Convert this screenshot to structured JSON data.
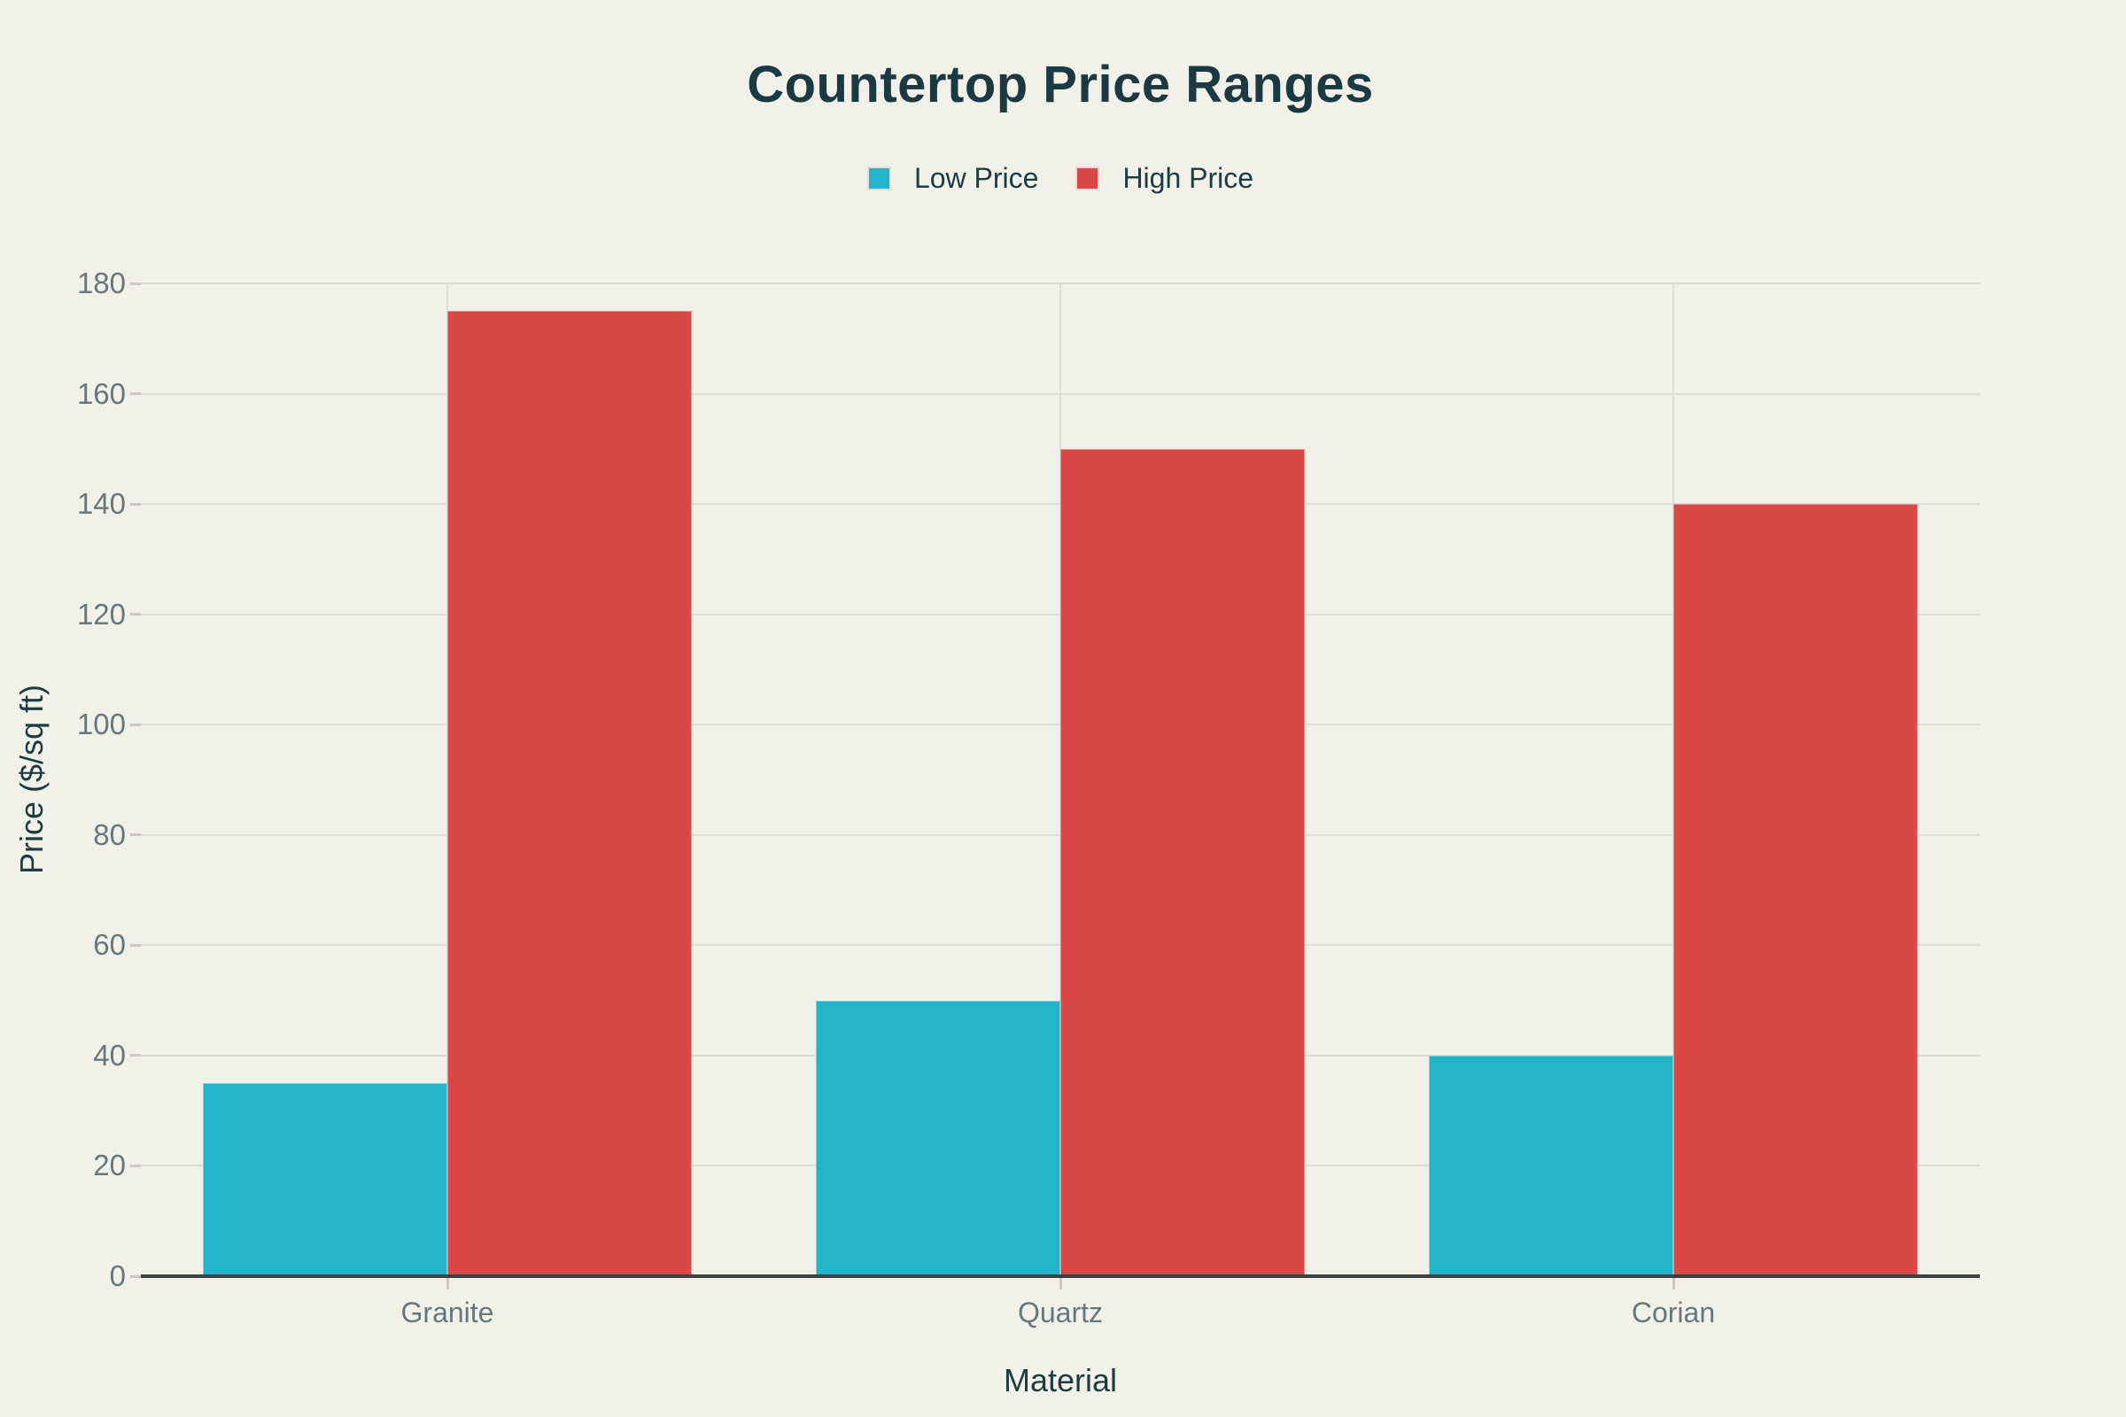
{
  "chart_data": {
    "type": "bar",
    "title": "Countertop Price Ranges",
    "xlabel": "Material",
    "ylabel": "Price ($/sq ft)",
    "categories": [
      "Granite",
      "Quartz",
      "Corian"
    ],
    "series": [
      {
        "name": "Low Price",
        "color": "#23b4ca",
        "values": [
          35,
          50,
          40
        ]
      },
      {
        "name": "High Price",
        "color": "#d94746",
        "values": [
          175,
          150,
          140
        ]
      }
    ],
    "ylim": [
      0,
      180
    ],
    "y_ticks": [
      0,
      20,
      40,
      60,
      80,
      100,
      120,
      140,
      160,
      180
    ],
    "grid": true,
    "legend_position": "top-center",
    "colors": {
      "background": "#f1f0e9",
      "title_text": "#1a3940",
      "axis_title_text": "#1d3c42",
      "tick_text": "#68767e",
      "gridline": "#deddd4",
      "tick_dash": "#ccc9c0",
      "axis_line": "#3d4143",
      "low_price": "#23b4ca",
      "high_price": "#d94746"
    }
  }
}
